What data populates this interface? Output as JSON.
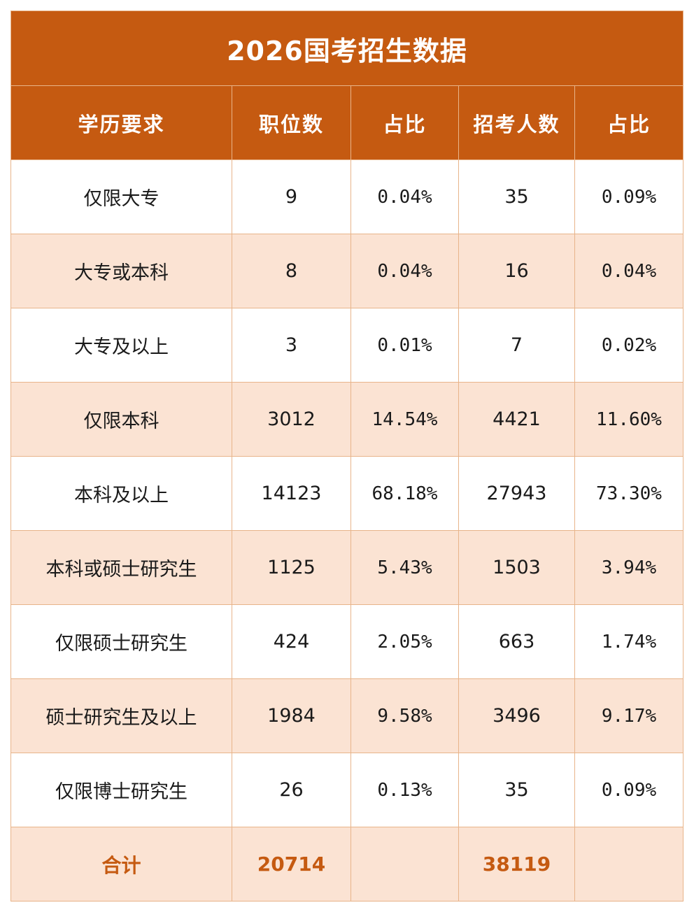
{
  "chart_data": {
    "type": "table",
    "title": "2026国考招生数据",
    "columns": [
      "学历要求",
      "职位数",
      "占比",
      "招考人数",
      "占比"
    ],
    "rows": [
      {
        "label": "仅限大专",
        "positions": "9",
        "positions_pct": "0.04%",
        "recruits": "35",
        "recruits_pct": "0.09%"
      },
      {
        "label": "大专或本科",
        "positions": "8",
        "positions_pct": "0.04%",
        "recruits": "16",
        "recruits_pct": "0.04%"
      },
      {
        "label": "大专及以上",
        "positions": "3",
        "positions_pct": "0.01%",
        "recruits": "7",
        "recruits_pct": "0.02%"
      },
      {
        "label": "仅限本科",
        "positions": "3012",
        "positions_pct": "14.54%",
        "recruits": "4421",
        "recruits_pct": "11.60%"
      },
      {
        "label": "本科及以上",
        "positions": "14123",
        "positions_pct": "68.18%",
        "recruits": "27943",
        "recruits_pct": "73.30%"
      },
      {
        "label": "本科或硕士研究生",
        "positions": "1125",
        "positions_pct": "5.43%",
        "recruits": "1503",
        "recruits_pct": "3.94%"
      },
      {
        "label": "仅限硕士研究生",
        "positions": "424",
        "positions_pct": "2.05%",
        "recruits": "663",
        "recruits_pct": "1.74%"
      },
      {
        "label": "硕士研究生及以上",
        "positions": "1984",
        "positions_pct": "9.58%",
        "recruits": "3496",
        "recruits_pct": "9.17%"
      },
      {
        "label": "仅限博士研究生",
        "positions": "26",
        "positions_pct": "0.13%",
        "recruits": "35",
        "recruits_pct": "0.09%"
      }
    ],
    "total": {
      "label": "合计",
      "positions": "20714",
      "positions_pct": "",
      "recruits": "38119",
      "recruits_pct": ""
    }
  },
  "colors": {
    "header_bg": "#c55a11",
    "header_text": "#ffffff",
    "stripe_bg": "#fbe3d3",
    "border": "#e8b48a",
    "total_text": "#c55a11"
  }
}
